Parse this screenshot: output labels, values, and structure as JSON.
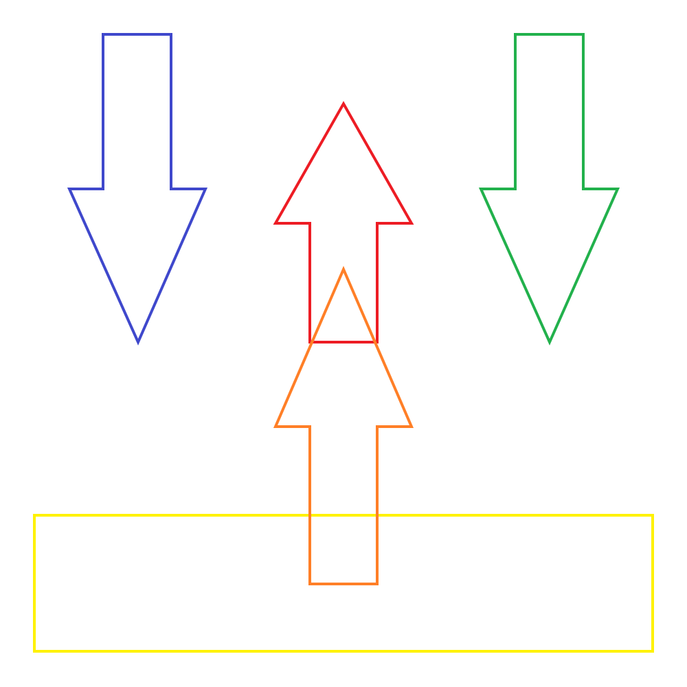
{
  "shapes": {
    "blue_arrow": {
      "kind": "arrow",
      "direction": "down",
      "color": "#3F48CC"
    },
    "red_arrow": {
      "kind": "arrow",
      "direction": "up",
      "color": "#ED1C24"
    },
    "green_arrow": {
      "kind": "arrow",
      "direction": "down",
      "color": "#22B14C"
    },
    "orange_arrow": {
      "kind": "arrow",
      "direction": "up",
      "color": "#FF7F27"
    },
    "yellow_rectangle": {
      "kind": "rectangle",
      "color": "#FFF200"
    }
  }
}
